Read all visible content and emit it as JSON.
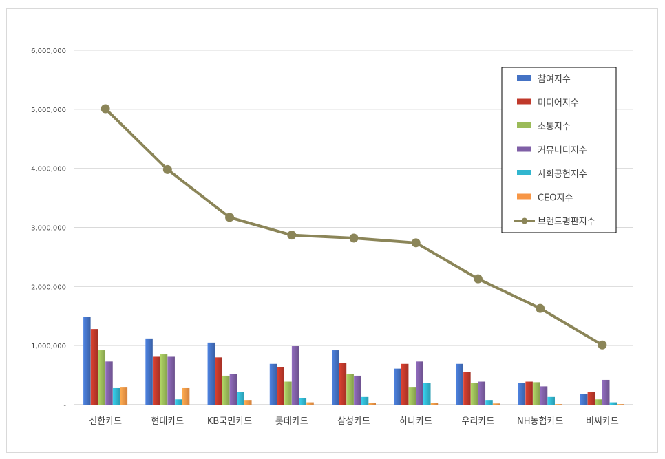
{
  "chart_data": {
    "type": "bar",
    "title": "",
    "xlabel": "",
    "ylabel": "",
    "ylim": [
      0,
      6000000
    ],
    "yticks": [
      0,
      1000000,
      2000000,
      3000000,
      4000000,
      5000000,
      6000000
    ],
    "ytick_labels": [
      "-",
      "1,000,000",
      "2,000,000",
      "3,000,000",
      "4,000,000",
      "5,000,000",
      "6,000,000"
    ],
    "grid": true,
    "legend_position": "top-right",
    "categories": [
      "신한카드",
      "현대카드",
      "KB국민카드",
      "롯데카드",
      "삼성카드",
      "하나카드",
      "우리카드",
      "NH농협카드",
      "비씨카드"
    ],
    "series": [
      {
        "name": "참여지수",
        "kind": "bar",
        "color": "#4472c4",
        "values": [
          1490000,
          1120000,
          1050000,
          690000,
          920000,
          610000,
          690000,
          370000,
          180000
        ]
      },
      {
        "name": "미디어지수",
        "kind": "bar",
        "color": "#c0392b",
        "values": [
          1280000,
          810000,
          800000,
          630000,
          700000,
          690000,
          550000,
          390000,
          220000
        ]
      },
      {
        "name": "소통지수",
        "kind": "bar",
        "color": "#9bbb59",
        "values": [
          920000,
          850000,
          490000,
          390000,
          520000,
          290000,
          370000,
          380000,
          90000
        ]
      },
      {
        "name": "커뮤니티지수",
        "kind": "bar",
        "color": "#7f5fa6",
        "values": [
          730000,
          810000,
          520000,
          990000,
          490000,
          730000,
          390000,
          310000,
          420000
        ]
      },
      {
        "name": "사회공헌지수",
        "kind": "bar",
        "color": "#31b6cf",
        "values": [
          280000,
          90000,
          210000,
          110000,
          130000,
          370000,
          80000,
          130000,
          40000
        ]
      },
      {
        "name": "CEO지수",
        "kind": "bar",
        "color": "#f79646",
        "values": [
          290000,
          280000,
          80000,
          40000,
          30000,
          30000,
          20000,
          10000,
          10000
        ]
      },
      {
        "name": "브랜드평판지수",
        "kind": "line",
        "color": "#8b8558",
        "values": [
          5010000,
          3980000,
          3170000,
          2870000,
          2820000,
          2740000,
          2130000,
          1630000,
          1010000
        ]
      }
    ]
  }
}
